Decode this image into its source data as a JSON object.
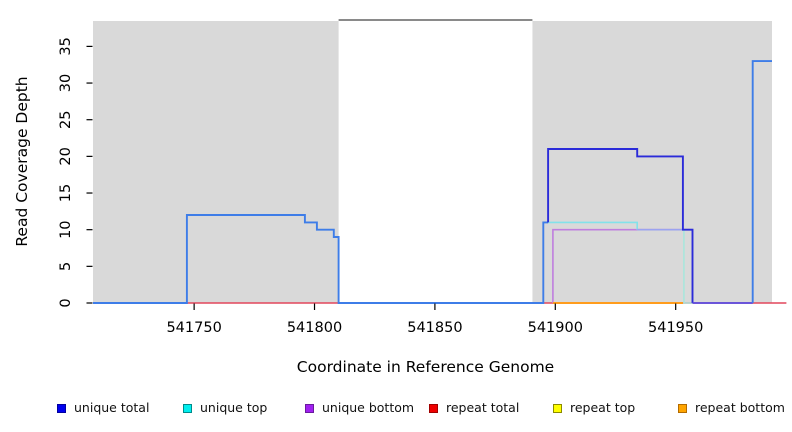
{
  "chart_data": {
    "type": "line",
    "title": "",
    "xlabel": "Coordinate in Reference Genome",
    "ylabel": "Read Coverage Depth",
    "xlim": [
      541708,
      541990
    ],
    "ylim": [
      0,
      38.6
    ],
    "x_ticks": [
      541750,
      541800,
      541850,
      541900,
      541950
    ],
    "y_ticks": [
      0,
      5,
      10,
      15,
      20,
      25,
      30,
      35
    ],
    "grid": false,
    "legend_position": "bottom",
    "background": {
      "masked_region_color": "#d9d9d9",
      "gap_region": {
        "from": 541810,
        "to": 541890.5
      },
      "gap_top_line_color": "#8a8a8a"
    },
    "series": [
      {
        "name": "unique total",
        "legend_color": "#0000ee",
        "depth_steps": [
          {
            "from": 541747,
            "to": 541796,
            "depth": 12
          },
          {
            "from": 541796,
            "to": 541801,
            "depth": 11
          },
          {
            "from": 541801,
            "to": 541808,
            "depth": 10
          },
          {
            "from": 541808,
            "to": 541810,
            "depth": 9
          },
          {
            "from": 541895,
            "to": 541897,
            "depth": 11
          },
          {
            "from": 541897,
            "to": 541934,
            "depth": 21
          },
          {
            "from": 541934,
            "to": 541953,
            "depth": 20
          },
          {
            "from": 541953,
            "to": 541957,
            "depth": 10
          },
          {
            "from": 541982,
            "to": 541990,
            "depth": 33
          }
        ]
      },
      {
        "name": "unique top",
        "legend_color": "#00eeee",
        "depth_steps": [
          {
            "from": 541747,
            "to": 541796,
            "depth": 12
          },
          {
            "from": 541796,
            "to": 541801,
            "depth": 11
          },
          {
            "from": 541801,
            "to": 541808,
            "depth": 10
          },
          {
            "from": 541808,
            "to": 541810,
            "depth": 9
          },
          {
            "from": 541895,
            "to": 541934,
            "depth": 11
          },
          {
            "from": 541934,
            "to": 541953,
            "depth": 10
          },
          {
            "from": 541982,
            "to": 541990,
            "depth": 33
          }
        ]
      },
      {
        "name": "unique bottom",
        "legend_color": "#a020f0",
        "depth_steps": [
          {
            "from": 541899,
            "to": 541957,
            "depth": 10
          }
        ]
      },
      {
        "name": "repeat total",
        "legend_color": "#ee0000",
        "depth_steps": [
          {
            "from": 541708,
            "to": 541996,
            "depth": 0
          }
        ]
      },
      {
        "name": "repeat top",
        "legend_color": "#ffff00",
        "depth_steps": [
          {
            "from": 541708,
            "to": 541996,
            "depth": 0
          }
        ]
      },
      {
        "name": "repeat bottom",
        "legend_color": "#ffa500",
        "depth_steps": [
          {
            "from": 541899,
            "to": 541953,
            "depth": 0
          }
        ]
      }
    ],
    "render_segments": [
      {
        "name": "repeat-total-baseline",
        "color": "#e2475c",
        "width": 1.4,
        "points": [
          [
            541708,
            0
          ],
          [
            541996,
            0
          ]
        ]
      },
      {
        "name": "unique-bottom-baseline-left",
        "color": "#bf7ede",
        "width": 1.4,
        "points": [
          [
            541708,
            0
          ],
          [
            541747,
            0
          ]
        ]
      },
      {
        "name": "unique-bottom-baseline-gap",
        "color": "#bf7ede",
        "width": 1.4,
        "points": [
          [
            541810,
            0
          ],
          [
            541895,
            0
          ]
        ]
      },
      {
        "name": "unique-bottom-region",
        "color": "#bf7ede",
        "width": 1.6,
        "points": [
          [
            541899,
            0
          ],
          [
            541899,
            10
          ],
          [
            541957,
            10
          ]
        ]
      },
      {
        "name": "repeat-bottom-region",
        "color": "#ff9c1c",
        "width": 2,
        "points": [
          [
            541899,
            0
          ],
          [
            541953,
            0
          ]
        ]
      },
      {
        "name": "unique-total-top-left-block",
        "color": "#3e7de8",
        "width": 1.9,
        "points": [
          [
            541708,
            0
          ],
          [
            541747,
            0
          ],
          [
            541747,
            12
          ],
          [
            541796,
            12
          ],
          [
            541796,
            11
          ],
          [
            541801,
            11
          ],
          [
            541801,
            10
          ],
          [
            541808,
            10
          ],
          [
            541808,
            9
          ],
          [
            541810,
            9
          ],
          [
            541810,
            0
          ],
          [
            541895,
            0
          ],
          [
            541895,
            11
          ],
          [
            541897,
            11
          ]
        ]
      },
      {
        "name": "unique-top-region",
        "color": "#82e2ea",
        "width": 1.6,
        "points": [
          [
            541897,
            11
          ],
          [
            541934,
            11
          ],
          [
            541934,
            10
          ]
        ]
      },
      {
        "name": "unique-top-bottom-overlap",
        "color": "#9ba3f0",
        "width": 1.6,
        "points": [
          [
            541934,
            10
          ],
          [
            541953,
            10
          ]
        ]
      },
      {
        "name": "unique-top-drop",
        "color": "#a9e6dc",
        "width": 1.6,
        "points": [
          [
            541953.4,
            10
          ],
          [
            541953.4,
            0
          ],
          [
            541957,
            0
          ]
        ]
      },
      {
        "name": "unique-total-region",
        "color": "#2b2bd9",
        "width": 1.9,
        "points": [
          [
            541897,
            11
          ],
          [
            541897,
            21
          ],
          [
            541934,
            21
          ],
          [
            541934,
            20
          ],
          [
            541953,
            20
          ],
          [
            541953,
            10
          ],
          [
            541957,
            10
          ],
          [
            541957,
            0
          ]
        ]
      },
      {
        "name": "unique-total-baseline-right",
        "color": "#5a4be0",
        "width": 1.8,
        "points": [
          [
            541957,
            0
          ],
          [
            541982,
            0
          ]
        ]
      },
      {
        "name": "unique-total-top-right-block",
        "color": "#3e7de8",
        "width": 1.9,
        "points": [
          [
            541982,
            0
          ],
          [
            541982,
            33
          ],
          [
            541990,
            33
          ]
        ]
      }
    ],
    "legend": [
      {
        "label": "unique total",
        "fill": "#0000ee",
        "border": "#0000a0"
      },
      {
        "label": "unique top",
        "fill": "#00eeee",
        "border": "#008b8b"
      },
      {
        "label": "unique bottom",
        "fill": "#a020f0",
        "border": "#6a1a9e"
      },
      {
        "label": "repeat total",
        "fill": "#ee0000",
        "border": "#a00000"
      },
      {
        "label": "repeat top",
        "fill": "#ffff00",
        "border": "#8b8b00"
      },
      {
        "label": "repeat bottom",
        "fill": "#ffa500",
        "border": "#b36b00"
      }
    ]
  }
}
